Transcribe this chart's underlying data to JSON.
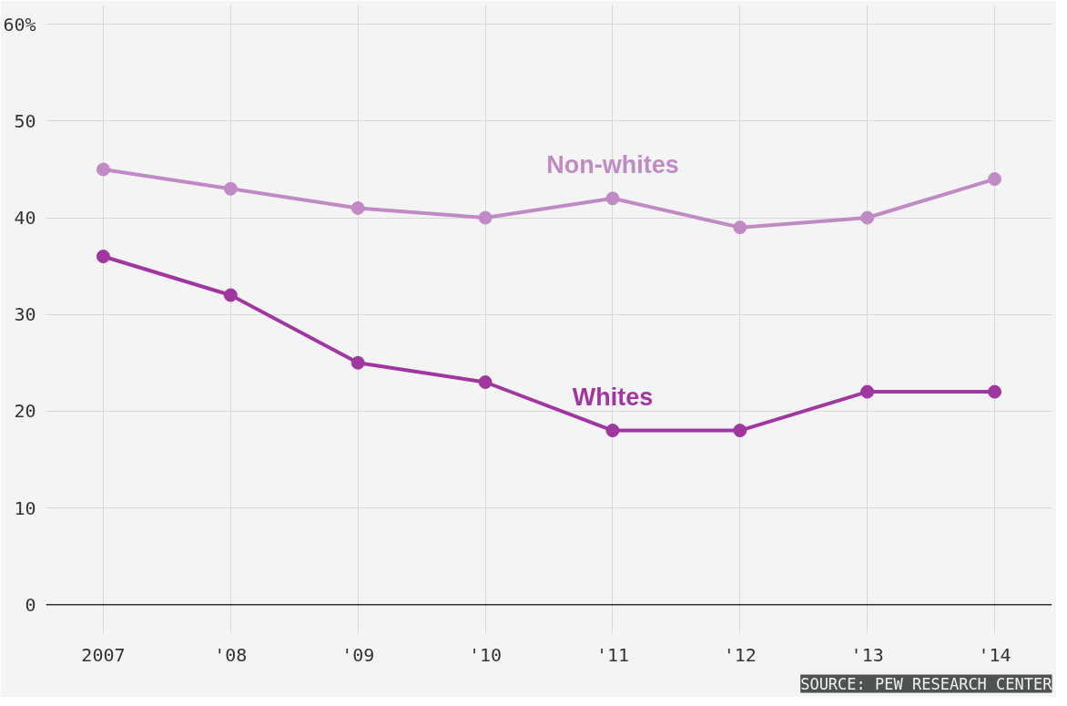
{
  "chart_data": {
    "type": "line",
    "categories": [
      "2007",
      "'08",
      "'09",
      "'10",
      "'11",
      "'12",
      "'13",
      "'14"
    ],
    "series": [
      {
        "name": "Non-whites",
        "color": "#c08bc4",
        "values": [
          45,
          43,
          41,
          40,
          42,
          39,
          40,
          44
        ]
      },
      {
        "name": "Whites",
        "color": "#a0369f",
        "values": [
          36,
          32,
          25,
          23,
          18,
          18,
          22,
          22
        ]
      }
    ],
    "ylim": [
      -3,
      62
    ],
    "yticks": [
      0,
      10,
      20,
      30,
      40,
      50,
      {
        "value": 60,
        "label": "60%"
      }
    ],
    "grid": true,
    "legend": false,
    "marker": "circle",
    "line_style": "solid",
    "annotations": [
      "SOURCE: PEW RESEARCH CENTER"
    ]
  }
}
